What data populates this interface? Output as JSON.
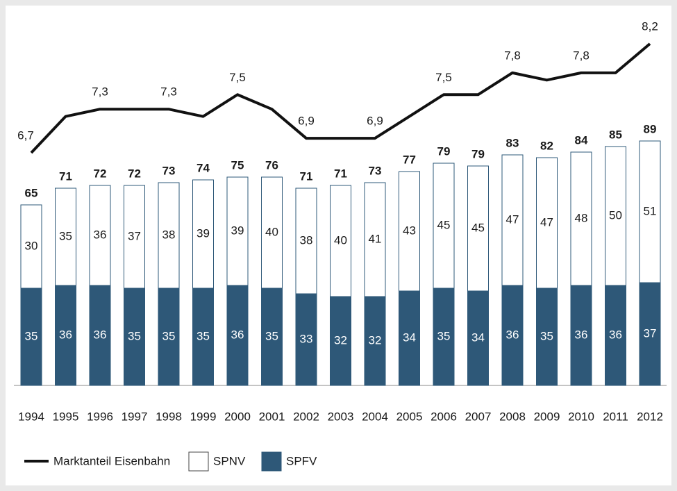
{
  "chart_data": {
    "type": "bar",
    "categories": [
      "1994",
      "1995",
      "1996",
      "1997",
      "1998",
      "1999",
      "2000",
      "2001",
      "2002",
      "2003",
      "2004",
      "2005",
      "2006",
      "2007",
      "2008",
      "2009",
      "2010",
      "2011",
      "2012"
    ],
    "series": [
      {
        "name": "SPFV",
        "color": "#2e5878",
        "values": [
          35,
          36,
          36,
          35,
          35,
          35,
          36,
          35,
          33,
          32,
          32,
          34,
          35,
          34,
          36,
          35,
          36,
          36,
          37
        ]
      },
      {
        "name": "SPNV",
        "color": "#ffffff",
        "values": [
          30,
          35,
          36,
          37,
          38,
          39,
          39,
          40,
          38,
          40,
          41,
          43,
          45,
          45,
          47,
          47,
          48,
          50,
          51
        ]
      }
    ],
    "totals": [
      65,
      71,
      72,
      72,
      73,
      74,
      75,
      76,
      71,
      71,
      73,
      77,
      79,
      79,
      83,
      82,
      84,
      85,
      89
    ],
    "line": {
      "type": "line",
      "name": "Marktanteil Eisenbahn",
      "color": "#111111",
      "values": [
        6.7,
        7.2,
        7.3,
        7.3,
        7.3,
        7.2,
        7.5,
        7.3,
        6.9,
        6.9,
        6.9,
        7.2,
        7.5,
        7.5,
        7.8,
        7.7,
        7.8,
        7.8,
        8.2
      ],
      "value_labels": [
        "6,7",
        null,
        "7,3",
        null,
        "7,3",
        null,
        "7,5",
        null,
        "6,9",
        null,
        "6,9",
        null,
        "7,5",
        null,
        "7,8",
        null,
        "7,8",
        null,
        "8,2"
      ]
    }
  }
}
